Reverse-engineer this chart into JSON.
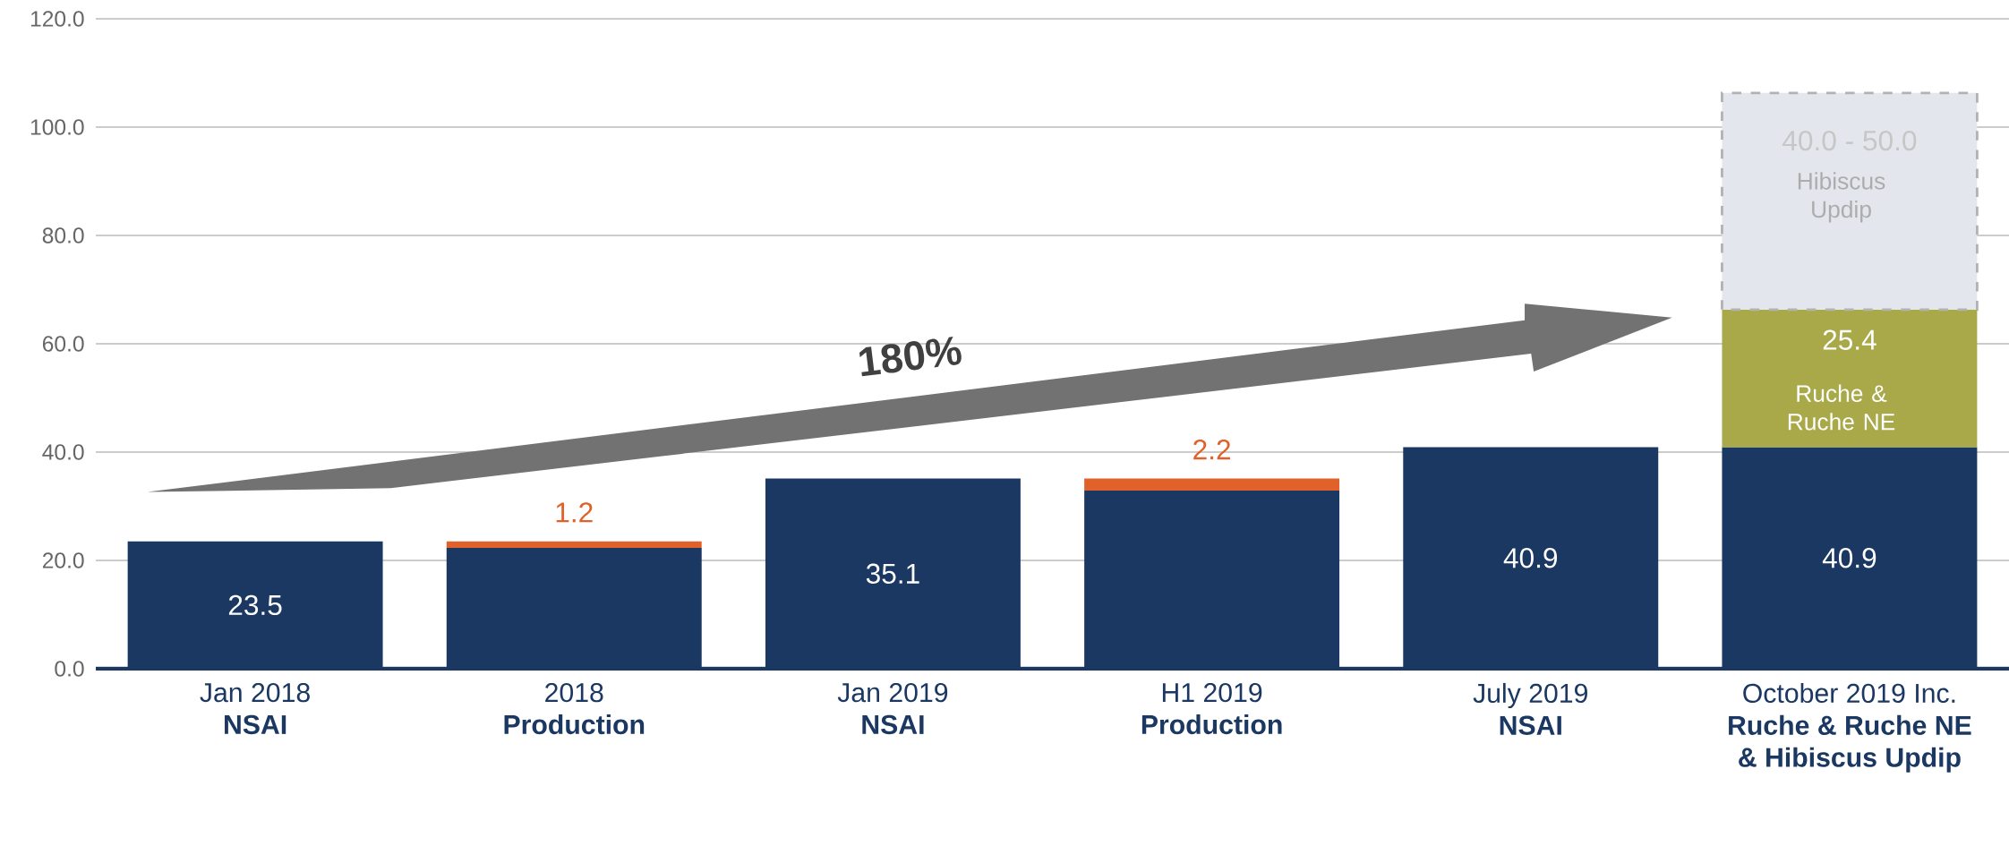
{
  "chart_data": {
    "type": "bar",
    "stacked": true,
    "categories": [
      "Jan 2018 **NSAI**",
      "2018 **Production**",
      "Jan 2019 **NSAI**",
      "H1 2019 **Production**",
      "July 2019 **NSAI**",
      "October 2019 Inc. **Ruche & Ruche NE & Hibiscus Updip**"
    ],
    "series": [
      {
        "color": "#1b3863",
        "values": [
          23.5,
          22.3,
          35.1,
          32.9,
          40.9,
          40.9
        ],
        "value_labels": [
          "23.5",
          null,
          "35.1",
          null,
          "40.9",
          "40.9"
        ]
      },
      {
        "color": "#e0622a",
        "values": [
          null,
          1.2,
          null,
          2.2,
          null,
          null
        ],
        "value_labels": [
          null,
          "1.2",
          null,
          "2.2",
          null,
          null
        ]
      },
      {
        "color": "#a9a94a",
        "values": [
          null,
          null,
          null,
          null,
          null,
          25.4
        ],
        "value_labels": [
          null,
          null,
          null,
          null,
          null,
          "25.4"
        ]
      },
      {
        "color": "#e3e7ed",
        "values": [
          null,
          null,
          null,
          null,
          null,
          40.0
        ],
        "value_labels": [
          null,
          null,
          null,
          null,
          null,
          "40.0 - 50.0"
        ]
      }
    ],
    "ylim": [
      0,
      120
    ],
    "yticks": [
      {
        "value": 0,
        "label": "0.0"
      },
      {
        "value": 20,
        "label": "20.0"
      },
      {
        "value": 40,
        "label": "40.0"
      },
      {
        "value": 60,
        "label": "60.0"
      },
      {
        "value": 80,
        "label": "80.0"
      },
      {
        "value": 100,
        "label": "100.0"
      },
      {
        "value": 120,
        "label": "120.0"
      }
    ],
    "grid": "y",
    "annotations": [
      "180%",
      "Ruche & Ruche NE",
      "Hibiscus Updip"
    ]
  }
}
